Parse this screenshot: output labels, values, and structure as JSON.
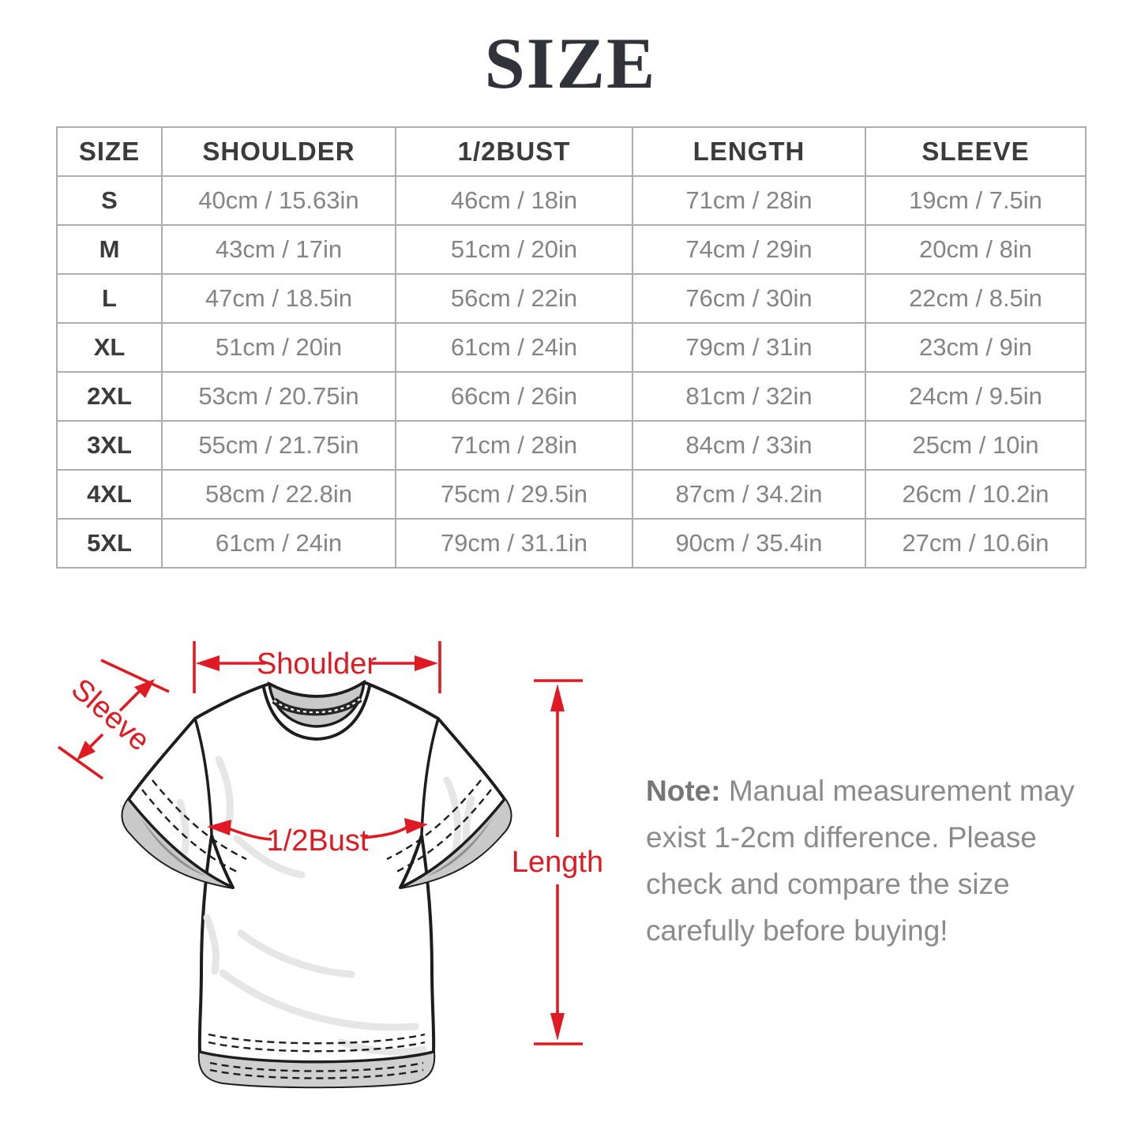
{
  "page": {
    "title": "SIZE"
  },
  "size_table": {
    "headers": [
      "SIZE",
      "SHOULDER",
      "1/2BUST",
      "LENGTH",
      "SLEEVE"
    ],
    "rows": [
      {
        "size": "S",
        "shoulder": "40cm / 15.63in",
        "half_bust": "46cm / 18in",
        "length": "71cm / 28in",
        "sleeve": "19cm / 7.5in"
      },
      {
        "size": "M",
        "shoulder": "43cm / 17in",
        "half_bust": "51cm / 20in",
        "length": "74cm / 29in",
        "sleeve": "20cm / 8in"
      },
      {
        "size": "L",
        "shoulder": "47cm / 18.5in",
        "half_bust": "56cm / 22in",
        "length": "76cm / 30in",
        "sleeve": "22cm / 8.5in"
      },
      {
        "size": "XL",
        "shoulder": "51cm / 20in",
        "half_bust": "61cm / 24in",
        "length": "79cm / 31in",
        "sleeve": "23cm / 9in"
      },
      {
        "size": "2XL",
        "shoulder": "53cm / 20.75in",
        "half_bust": "66cm / 26in",
        "length": "81cm / 32in",
        "sleeve": "24cm / 9.5in"
      },
      {
        "size": "3XL",
        "shoulder": "55cm / 21.75in",
        "half_bust": "71cm / 28in",
        "length": "84cm / 33in",
        "sleeve": "25cm / 10in"
      },
      {
        "size": "4XL",
        "shoulder": "58cm / 22.8in",
        "half_bust": "75cm / 29.5in",
        "length": "87cm / 34.2in",
        "sleeve": "26cm / 10.2in"
      },
      {
        "size": "5XL",
        "shoulder": "61cm / 24in",
        "half_bust": "79cm / 31.1in",
        "length": "90cm / 35.4in",
        "sleeve": "27cm / 10.6in"
      }
    ]
  },
  "diagram": {
    "labels": {
      "shoulder": "Shoulder",
      "sleeve": "Sleeve",
      "half_bust": "1/2Bust",
      "length": "Length"
    },
    "annotation_color": "#e01a22"
  },
  "note": {
    "label": "Note:",
    "line1": "Manual measurement may",
    "line2": "exist 1-2cm difference. Please",
    "line3": "check and compare the size",
    "line4": "carefully before buying!"
  }
}
